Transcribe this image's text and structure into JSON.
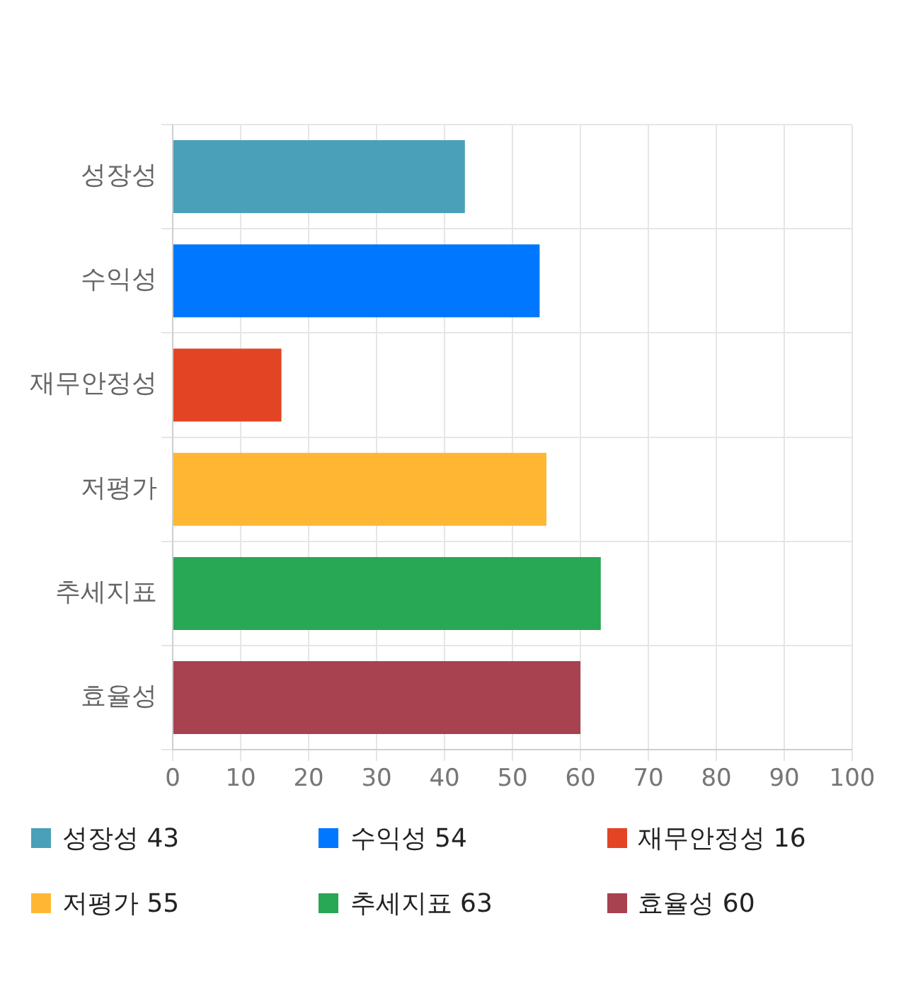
{
  "chart_data": {
    "type": "bar",
    "orientation": "horizontal",
    "categories": [
      "성장성",
      "수익성",
      "재무안정성",
      "저평가",
      "추세지표",
      "효율성"
    ],
    "series": [
      {
        "name": "성장성 43",
        "color": "#4aa0b8",
        "values": [
          43,
          null,
          null,
          null,
          null,
          null
        ]
      },
      {
        "name": "수익성 54",
        "color": "#0077ff",
        "values": [
          null,
          54,
          null,
          null,
          null,
          null
        ]
      },
      {
        "name": "재무안정성 16",
        "color": "#e34423",
        "values": [
          null,
          null,
          16,
          null,
          null,
          null
        ]
      },
      {
        "name": "저평가 55",
        "color": "#ffb733",
        "values": [
          null,
          null,
          null,
          55,
          null,
          null
        ]
      },
      {
        "name": "추세지표 63",
        "color": "#28a754",
        "values": [
          null,
          null,
          null,
          null,
          63,
          null
        ]
      },
      {
        "name": "효율성 60",
        "color": "#a84150",
        "values": [
          null,
          null,
          null,
          null,
          null,
          60
        ]
      }
    ],
    "xlim": [
      0,
      100
    ],
    "xticks": [
      0,
      10,
      20,
      30,
      40,
      50,
      60,
      70,
      80,
      90,
      100
    ],
    "grid": true,
    "legend": "bottom"
  }
}
